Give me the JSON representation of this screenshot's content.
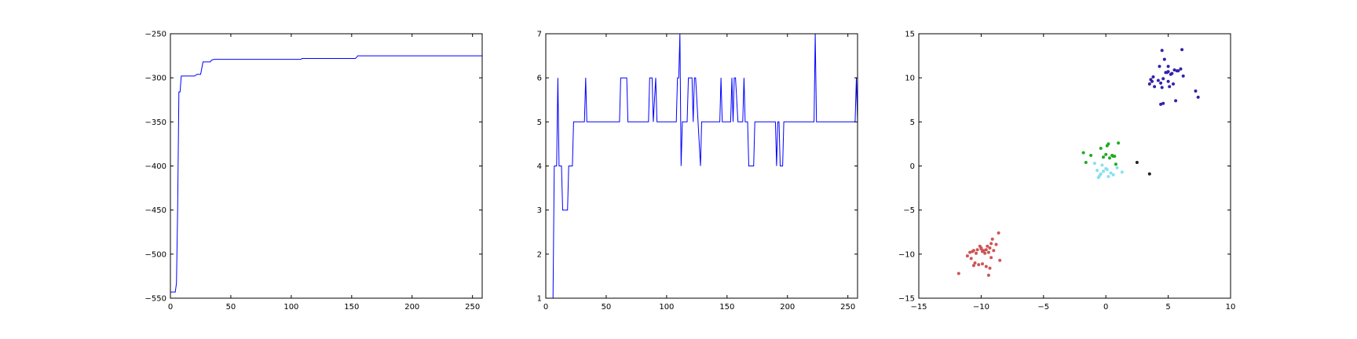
{
  "chart_data": [
    {
      "type": "line",
      "title": "",
      "xlabel": "",
      "ylabel": "",
      "xlim": [
        0,
        258
      ],
      "ylim": [
        -550,
        -250
      ],
      "xticks": [
        0,
        50,
        100,
        150,
        200,
        250
      ],
      "yticks": [
        -550,
        -500,
        -450,
        -400,
        -350,
        -300,
        -250
      ],
      "grid": false,
      "legend": false,
      "series": [
        {
          "color": "#0000ff",
          "x": [
            0,
            4,
            5,
            6,
            7,
            8,
            9,
            10,
            11,
            12,
            14,
            16,
            18,
            20,
            22,
            25,
            27,
            29,
            31,
            33,
            34,
            36,
            38,
            40,
            108,
            109,
            110,
            112,
            153,
            154,
            155,
            156,
            258
          ],
          "y": [
            -543,
            -543,
            -533,
            -450,
            -316,
            -316,
            -298,
            -298,
            -298,
            -298,
            -298,
            -298,
            -298,
            -298,
            -296,
            -296,
            -282,
            -282,
            -282,
            -282,
            -280,
            -279,
            -279,
            -279,
            -279,
            -278,
            -278,
            -278,
            -278,
            -277,
            -275,
            -275,
            -275
          ]
        }
      ]
    },
    {
      "type": "line",
      "title": "",
      "xlabel": "",
      "ylabel": "",
      "xlim": [
        0,
        258
      ],
      "ylim": [
        1,
        7
      ],
      "xticks": [
        0,
        50,
        100,
        150,
        200,
        250
      ],
      "yticks": [
        1,
        2,
        3,
        4,
        5,
        6,
        7
      ],
      "grid": false,
      "legend": false,
      "series": [
        {
          "color": "#0000ff",
          "x": [
            0,
            6,
            7,
            9,
            10,
            11,
            13,
            14,
            18,
            19,
            22,
            23,
            31,
            32,
            33,
            34,
            61,
            62,
            67,
            68,
            85,
            86,
            88,
            89,
            91,
            92,
            93,
            108,
            109,
            110,
            111,
            112,
            113,
            117,
            118,
            121,
            122,
            123,
            124,
            128,
            129,
            130,
            144,
            145,
            146,
            153,
            154,
            155,
            156,
            157,
            159,
            160,
            163,
            164,
            165,
            167,
            168,
            172,
            173,
            190,
            191,
            192,
            193,
            194,
            196,
            197,
            198,
            222,
            223,
            224,
            256,
            257,
            258
          ],
          "y": [
            1,
            1,
            4,
            4,
            6,
            4,
            4,
            3,
            3,
            4,
            4,
            5,
            5,
            5,
            6,
            5,
            5,
            6,
            6,
            5,
            5,
            6,
            6,
            5,
            6,
            5,
            5,
            5,
            6,
            6,
            7,
            4,
            5,
            5,
            6,
            6,
            5,
            6,
            6,
            4,
            5,
            5,
            5,
            6,
            5,
            5,
            6,
            5,
            6,
            6,
            5,
            5,
            5,
            6,
            5,
            5,
            4,
            4,
            5,
            5,
            4,
            5,
            5,
            4,
            4,
            5,
            5,
            5,
            7,
            5,
            5,
            6,
            5
          ]
        }
      ]
    },
    {
      "type": "scatter",
      "title": "",
      "xlabel": "",
      "ylabel": "",
      "xlim": [
        -15,
        10
      ],
      "ylim": [
        -15,
        15
      ],
      "xticks": [
        -15,
        -10,
        -5,
        0,
        5,
        10
      ],
      "yticks": [
        -15,
        -10,
        -5,
        0,
        5,
        10,
        15
      ],
      "grid": false,
      "legend": false,
      "series": [
        {
          "color": "#3322aa",
          "x": [
            4.5,
            4.7,
            5.0,
            4.3,
            4.8,
            5.2,
            5.5,
            5.8,
            6.1,
            3.6,
            3.8,
            4.4,
            4.6,
            5.0,
            5.4,
            6.2,
            3.5,
            3.9,
            4.5,
            5.1,
            5.6,
            7.2,
            7.4,
            4.4,
            4.6,
            5.0,
            3.7,
            5.3,
            4.2,
            4.9,
            6.0,
            5.7
          ],
          "y": [
            13.1,
            12.1,
            11.3,
            11.3,
            10.6,
            10.4,
            10.9,
            10.8,
            13.2,
            9.8,
            10.1,
            9.4,
            9.9,
            9.6,
            9.3,
            10.2,
            9.3,
            9.0,
            8.9,
            9.0,
            7.4,
            8.5,
            7.8,
            7.0,
            7.1,
            10.7,
            9.6,
            10.5,
            9.7,
            10.6,
            11.0,
            10.8
          ]
        },
        {
          "color": "#22aa22",
          "x": [
            -1.8,
            -1.6,
            -1.2,
            -0.4,
            0.1,
            0.2,
            0.5,
            0.6,
            0.8,
            1.0,
            0.3,
            -0.2,
            0.0,
            0.7
          ],
          "y": [
            1.5,
            0.4,
            1.2,
            2.0,
            2.3,
            2.5,
            1.2,
            1.1,
            0.2,
            2.6,
            0.9,
            1.0,
            1.3,
            1.1
          ]
        },
        {
          "color": "#88e0f0",
          "x": [
            -0.9,
            -0.7,
            -0.5,
            -0.4,
            -0.2,
            0.0,
            0.2,
            0.4,
            0.6,
            0.9,
            1.3,
            -0.3,
            0.1,
            -0.6
          ],
          "y": [
            0.3,
            -0.5,
            -1.1,
            -0.9,
            -0.6,
            -0.3,
            -1.2,
            -0.8,
            -1.0,
            -0.2,
            -0.7,
            0.1,
            -0.4,
            -1.3
          ]
        },
        {
          "color": "#222222",
          "x": [
            2.5,
            3.5
          ],
          "y": [
            0.4,
            -0.9
          ]
        },
        {
          "color": "#cc5555",
          "x": [
            -11.8,
            -11.1,
            -10.9,
            -10.7,
            -10.6,
            -10.4,
            -10.3,
            -10.1,
            -10.0,
            -9.9,
            -9.8,
            -9.7,
            -9.6,
            -9.5,
            -9.4,
            -9.3,
            -9.2,
            -9.1,
            -9.0,
            -8.8,
            -8.6,
            -10.8,
            -10.5,
            -10.2,
            -9.6,
            -9.3,
            -10.6,
            -9.9,
            -8.5,
            -9.2,
            -10.0,
            -9.4
          ],
          "y": [
            -12.2,
            -10.2,
            -9.8,
            -9.7,
            -9.6,
            -9.9,
            -9.5,
            -9.1,
            -9.4,
            -9.7,
            -9.6,
            -9.9,
            -9.5,
            -9.1,
            -9.8,
            -9.3,
            -8.8,
            -8.3,
            -9.6,
            -8.9,
            -7.6,
            -10.5,
            -11.0,
            -11.2,
            -11.4,
            -11.6,
            -11.3,
            -11.1,
            -10.7,
            -10.4,
            -9.3,
            -12.4
          ]
        }
      ]
    }
  ]
}
